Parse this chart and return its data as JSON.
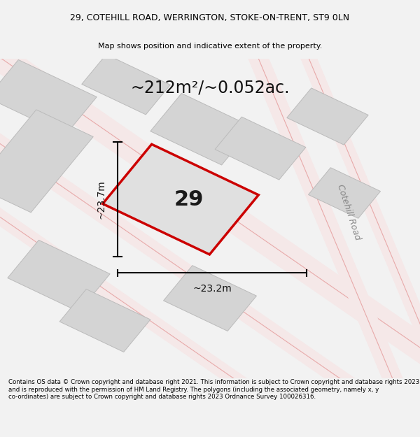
{
  "title_line1": "29, COTEHILL ROAD, WERRINGTON, STOKE-ON-TRENT, ST9 0LN",
  "title_line2": "Map shows position and indicative extent of the property.",
  "area_text": "~212m²/~0.052ac.",
  "number_label": "29",
  "width_label": "~23.2m",
  "height_label": "~23.7m",
  "road_label": "Cotehill Road",
  "footer_text": "Contains OS data © Crown copyright and database right 2021. This information is subject to Crown copyright and database rights 2023 and is reproduced with the permission of HM Land Registry. The polygons (including the associated geometry, namely x, y co-ordinates) are subject to Crown copyright and database rights 2023 Ordnance Survey 100026316.",
  "bg_color": "#f2f2f2",
  "map_bg_color": "#ffffff",
  "plot_fill_color": "#e0e0e0",
  "plot_border_color": "#cc0000",
  "building_fill_color": "#d4d4d4",
  "building_edge_color": "#bbbbbb",
  "road_line_color": "#e8aaaa",
  "road_fill_color": "#f5d8d8"
}
